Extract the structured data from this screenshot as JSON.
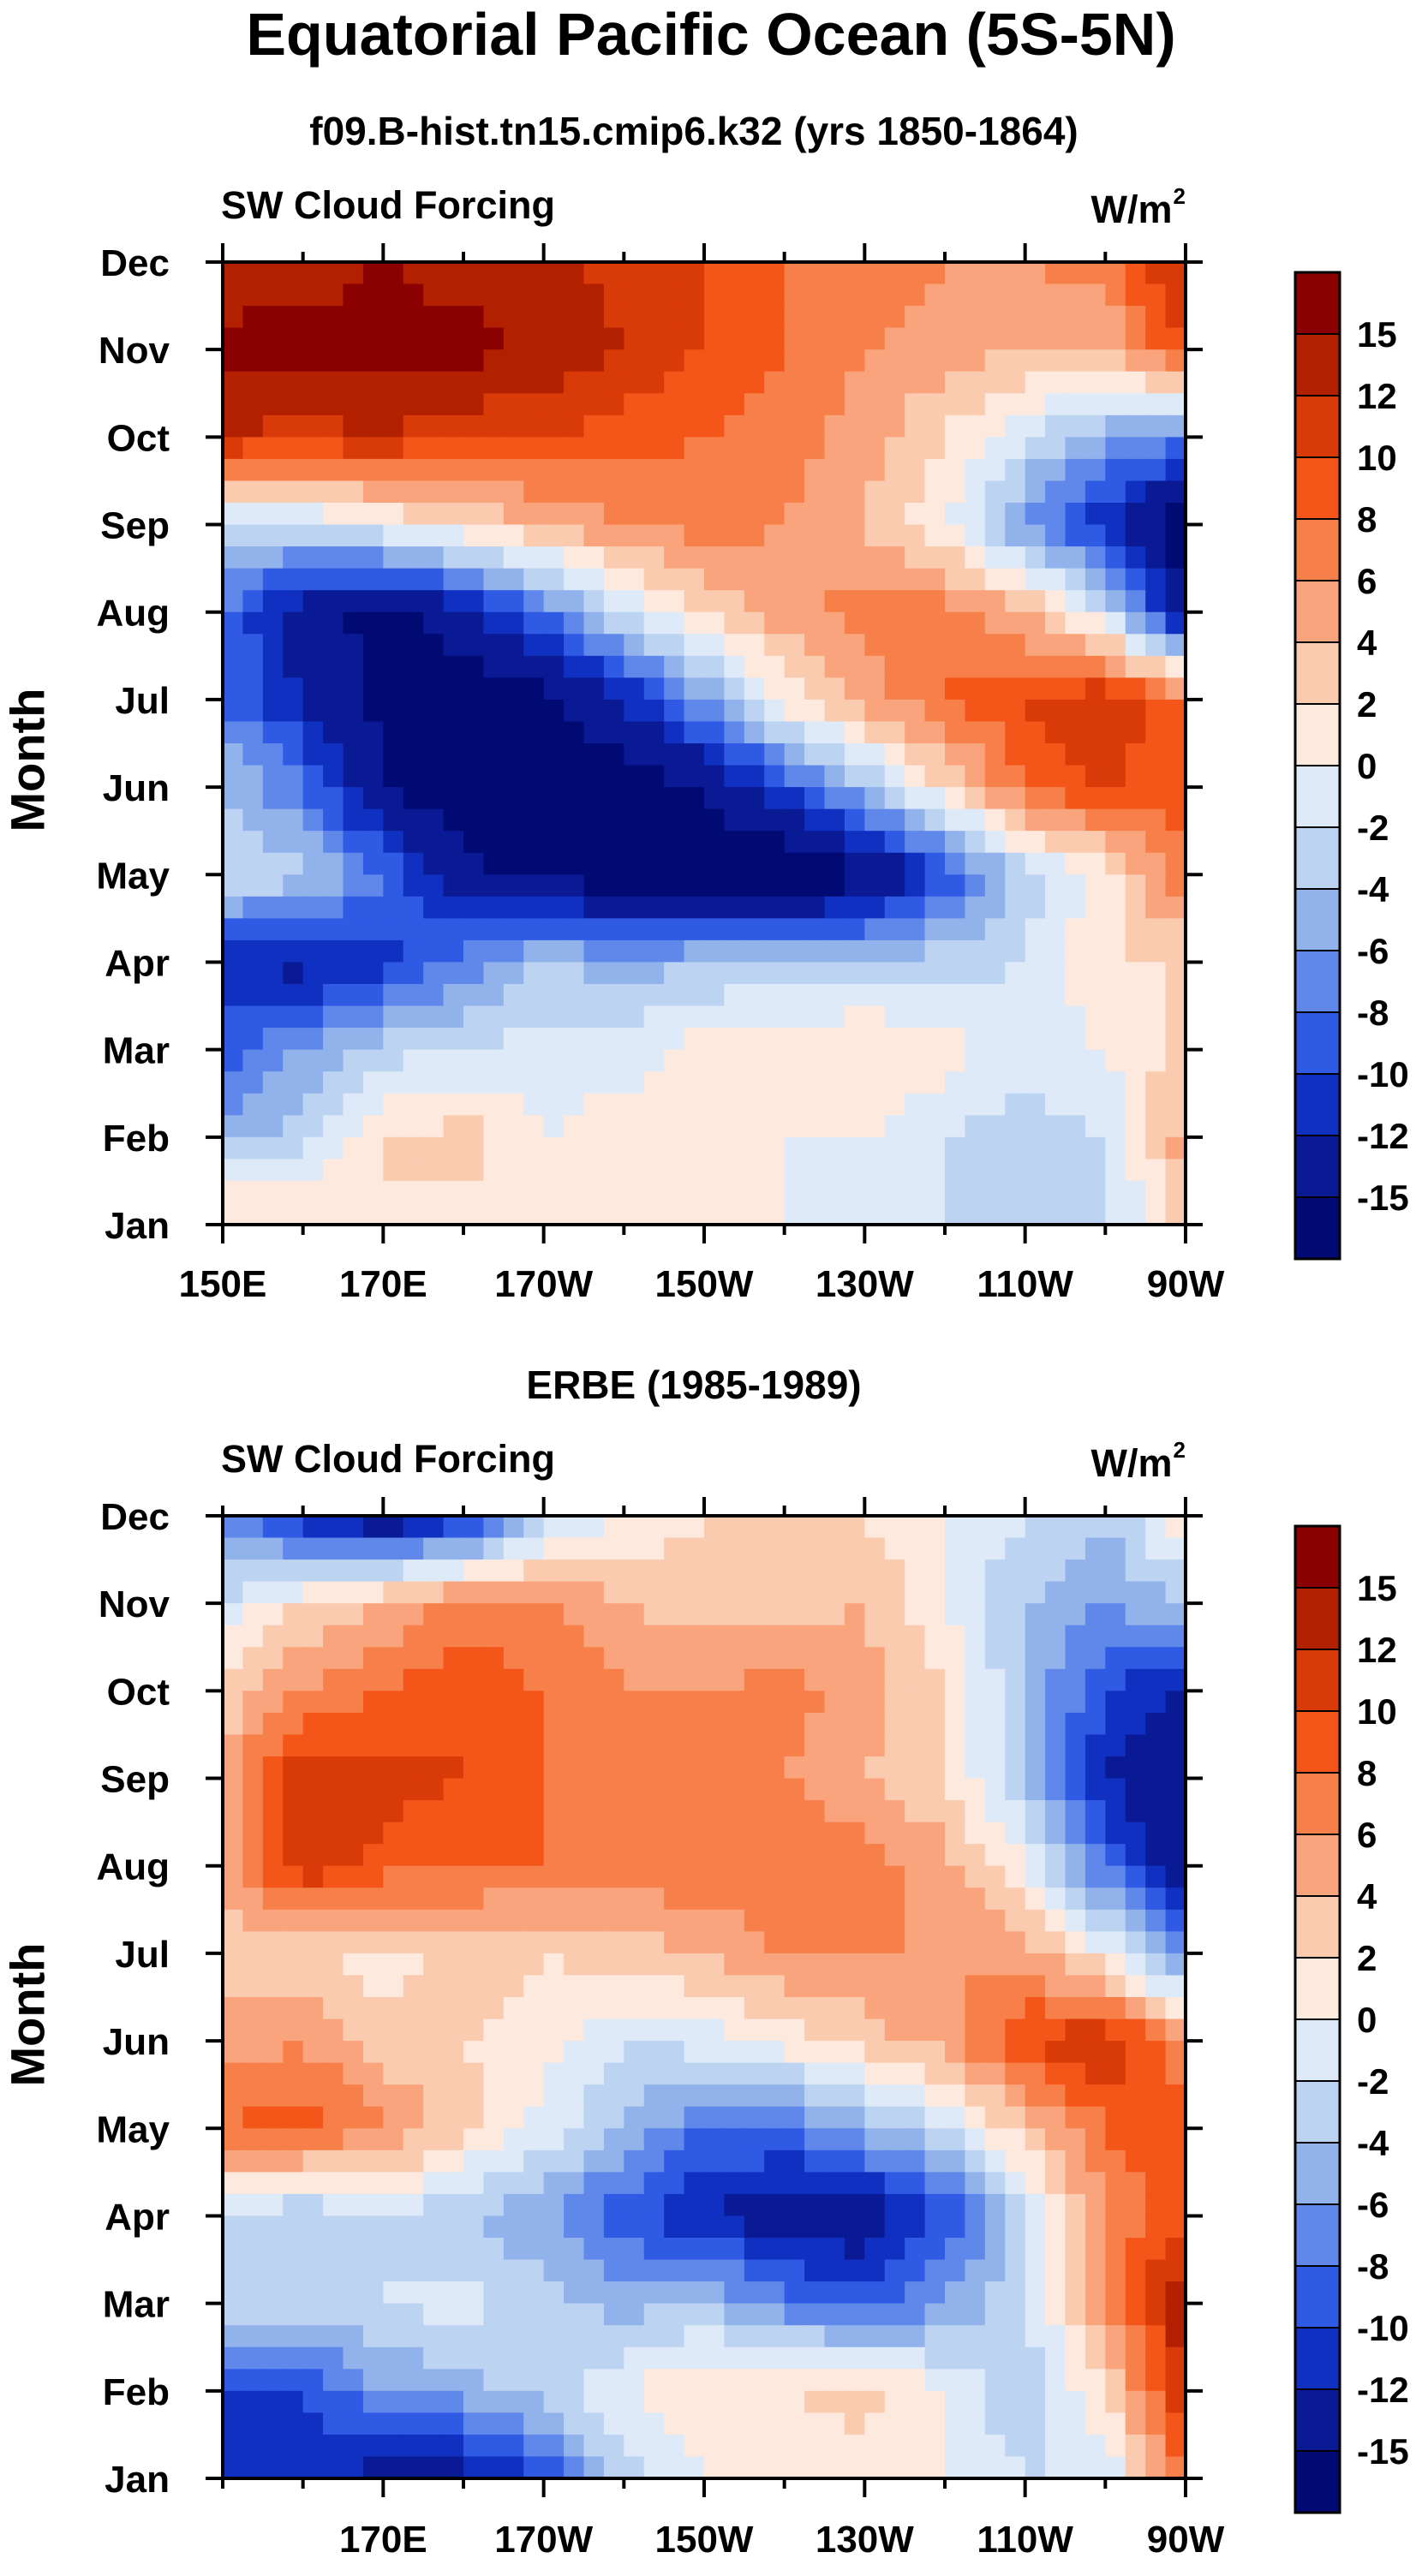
{
  "page": {
    "title": "Equatorial Pacific Ocean (5S-5N)"
  },
  "colorbar": {
    "labels": [
      "15",
      "12",
      "10",
      "8",
      "6",
      "4",
      "2",
      "0",
      "-2",
      "-4",
      "-6",
      "-8",
      "-10",
      "-12",
      "-15"
    ],
    "colors_top_to_bottom": [
      "#8b0000",
      "#b22000",
      "#d83a08",
      "#f45518",
      "#f7804a",
      "#f9a47c",
      "#fbcbb0",
      "#fde9de",
      "#deeaf8",
      "#bdd3f2",
      "#92b2ec",
      "#5f88ea",
      "#2f5ae4",
      "#1030c2",
      "#0a1a95",
      "#000a72"
    ]
  },
  "chart_data": [
    {
      "type": "heatmap",
      "title": "f09.B-hist.tn15.cmip6.k32 (yrs 1850-1864)",
      "left_label": "SW Cloud Forcing",
      "units_base": "W/m",
      "units_exp": "2",
      "ylabel": "Month",
      "xlabel": "",
      "x": [
        150,
        160,
        170,
        180,
        190,
        200,
        210,
        220,
        230,
        240,
        250,
        260,
        270
      ],
      "xlim": [
        150,
        270
      ],
      "x_ticks": [
        150,
        170,
        190,
        210,
        230,
        250,
        270
      ],
      "x_tick_labels": [
        "150E",
        "170E",
        "170W",
        "150W",
        "130W",
        "110W",
        "90W"
      ],
      "y_tick_labels": [
        "Jan",
        "Feb",
        "Mar",
        "Apr",
        "May",
        "Jun",
        "Jul",
        "Aug",
        "Sep",
        "Oct",
        "Nov",
        "Dec"
      ],
      "z": [
        [
          3,
          2,
          2,
          1,
          1,
          1,
          0,
          0,
          -1,
          -2,
          -3,
          -3,
          4
        ],
        [
          -5,
          -3,
          2,
          3,
          0,
          1,
          1,
          0,
          0,
          -2,
          -3,
          -2,
          5
        ],
        [
          -9,
          -6,
          -3,
          -2,
          -1,
          -1,
          1,
          2,
          2,
          1,
          -1,
          0,
          3
        ],
        [
          -12,
          -13,
          -11,
          -7,
          -4,
          -5,
          -4,
          -4,
          -3,
          -3,
          -2,
          2,
          2
        ],
        [
          -2,
          -3,
          -8,
          -14,
          -16,
          -17,
          -18,
          -18,
          -16,
          -10,
          -3,
          1,
          8
        ],
        [
          -4,
          -8,
          -15,
          -17,
          -18,
          -17,
          -15,
          -10,
          -4,
          2,
          8,
          10,
          9
        ],
        [
          -8,
          -12,
          -16,
          -17,
          -16,
          -12,
          -6,
          1,
          5,
          8,
          10,
          12,
          8
        ],
        [
          -8,
          -14,
          -16,
          -13,
          -8,
          -2,
          2,
          5,
          7,
          7,
          4,
          -2,
          -15
        ],
        [
          -2,
          -2,
          0,
          2,
          4,
          6,
          7,
          6,
          4,
          0,
          -6,
          -12,
          -17
        ],
        [
          12,
          11,
          12,
          10,
          10,
          9,
          8,
          7,
          5,
          2,
          -2,
          -5,
          -8
        ],
        [
          16,
          16,
          16,
          16,
          14,
          12,
          10,
          8,
          6,
          5,
          4,
          4,
          10
        ],
        [
          13,
          14,
          15,
          14,
          13,
          11,
          10,
          8,
          7,
          6,
          6,
          7,
          13
        ]
      ]
    },
    {
      "type": "heatmap",
      "title": "ERBE (1985-1989)",
      "left_label": "SW Cloud Forcing",
      "units_base": "W/m",
      "units_exp": "2",
      "ylabel": "Month",
      "xlabel": "",
      "x": [
        150,
        160,
        170,
        180,
        190,
        200,
        210,
        220,
        230,
        240,
        250,
        260,
        270
      ],
      "xlim": [
        150,
        270
      ],
      "x_ticks": [
        170,
        190,
        210,
        230,
        250,
        270
      ],
      "x_tick_labels": [
        "170E",
        "170W",
        "150W",
        "130W",
        "110W",
        "90W"
      ],
      "y_tick_labels": [
        "Jan",
        "Feb",
        "Mar",
        "Apr",
        "May",
        "Jun",
        "Jul",
        "Aug",
        "Sep",
        "Oct",
        "Nov",
        "Dec"
      ],
      "z": [
        [
          -11,
          -12,
          -13,
          -13,
          -10,
          -3,
          0,
          0,
          1,
          0,
          -2,
          -2,
          8
        ],
        [
          -10,
          -10,
          -6,
          -5,
          -3,
          0,
          2,
          2,
          3,
          0,
          -4,
          2,
          12
        ],
        [
          -3,
          -2,
          -2,
          -1,
          -3,
          -5,
          -4,
          -7,
          -9,
          -6,
          -2,
          6,
          14
        ],
        [
          -2,
          -4,
          -2,
          -4,
          -6,
          -9,
          -12,
          -14,
          -14,
          -10,
          -2,
          6,
          10
        ],
        [
          8,
          9,
          6,
          3,
          -1,
          -4,
          -8,
          -8,
          -5,
          -2,
          3,
          8,
          10
        ],
        [
          5,
          6,
          3,
          2,
          1,
          -2,
          -1,
          1,
          3,
          5,
          10,
          12,
          6
        ],
        [
          3,
          2,
          1,
          3,
          2,
          3,
          4,
          6,
          6,
          6,
          5,
          0,
          -8
        ],
        [
          4,
          12,
          9,
          8,
          8,
          7,
          8,
          8,
          7,
          5,
          0,
          -8,
          -14
        ],
        [
          5,
          12,
          11,
          10,
          8,
          7,
          7,
          6,
          4,
          2,
          -4,
          -12,
          -15
        ],
        [
          2,
          6,
          8,
          10,
          8,
          6,
          6,
          7,
          5,
          2,
          -4,
          -10,
          -12
        ],
        [
          -2,
          2,
          4,
          7,
          6,
          4,
          3,
          3,
          4,
          0,
          -4,
          -6,
          -4
        ],
        [
          -6,
          -12,
          -15,
          -12,
          -3,
          0,
          2,
          2,
          2,
          0,
          -2,
          -4,
          2
        ]
      ]
    }
  ]
}
